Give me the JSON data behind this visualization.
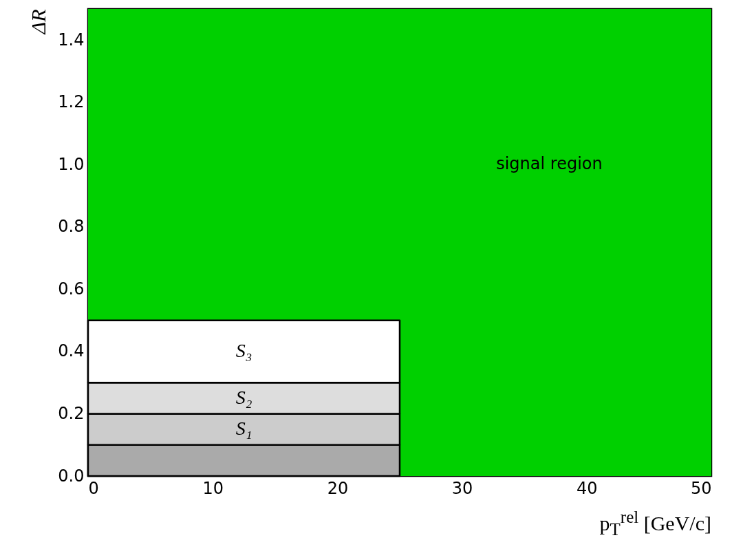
{
  "chart_data": {
    "type": "area",
    "stacked": true,
    "xlabel": "p$_{T}$$^{rel}$ [GeV/c]",
    "ylabel": "ΔR",
    "xlim": [
      0,
      50
    ],
    "ylim": [
      0,
      1.5
    ],
    "xticks": [
      0,
      10,
      20,
      30,
      40,
      50
    ],
    "yticks": [
      {
        "value": 0,
        "label": "0.0"
      },
      0.2,
      0.4,
      0.6,
      0.8,
      {
        "value": 1,
        "label": "1.0"
      },
      1.2,
      1.4
    ],
    "grid": false,
    "x": [
      0,
      25
    ],
    "series": [
      {
        "color": "#aaaaaa",
        "values": [
          0.1,
          0.1
        ]
      },
      {
        "name": "S₁",
        "color": "#cccccc",
        "values": [
          0.1,
          0.1
        ]
      },
      {
        "name": "S₂",
        "color": "#dddddd",
        "values": [
          0.1,
          0.1
        ]
      },
      {
        "name": "S₃",
        "color": "#ffffff",
        "values": [
          0.2,
          0.2
        ]
      }
    ],
    "bands": [
      {
        "axis": "x",
        "from": 25,
        "to": 50,
        "color": "#00d000"
      },
      {
        "axis": "y",
        "from": 0.5,
        "to": 1.5,
        "color": "#00d000"
      }
    ],
    "annotations": [
      "signal region"
    ]
  }
}
